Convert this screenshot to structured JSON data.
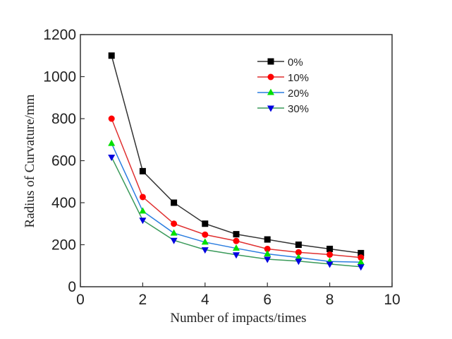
{
  "chart_data": {
    "type": "line",
    "title": "",
    "xlabel": "Number of impacts/times",
    "ylabel": "Radius of Curvature/mm",
    "xlim": [
      0,
      10
    ],
    "ylim": [
      0,
      1200
    ],
    "xticks": [
      0,
      2,
      4,
      6,
      8,
      10
    ],
    "yticks": [
      0,
      200,
      400,
      600,
      800,
      1000,
      1200
    ],
    "grid": false,
    "legend_position": "top-right",
    "x": [
      1,
      2,
      3,
      4,
      5,
      6,
      7,
      8,
      9
    ],
    "series": [
      {
        "name": "0%",
        "values": [
          1100,
          550,
          400,
          300,
          250,
          225,
          200,
          180,
          160
        ],
        "line_color": "#333333",
        "marker_color": "#000000",
        "marker": "square"
      },
      {
        "name": "10%",
        "values": [
          800,
          427,
          300,
          248,
          218,
          180,
          164,
          153,
          139
        ],
        "line_color": "#e03030",
        "marker_color": "#ff0000",
        "marker": "circle"
      },
      {
        "name": "20%",
        "values": [
          682,
          360,
          255,
          212,
          183,
          156,
          139,
          120,
          117
        ],
        "line_color": "#2a7de0",
        "marker_color": "#00e000",
        "marker": "triangle-up"
      },
      {
        "name": "30%",
        "values": [
          617,
          317,
          221,
          176,
          152,
          131,
          122,
          108,
          95
        ],
        "line_color": "#3a9a5a",
        "marker_color": "#0000e0",
        "marker": "triangle-down"
      }
    ]
  }
}
